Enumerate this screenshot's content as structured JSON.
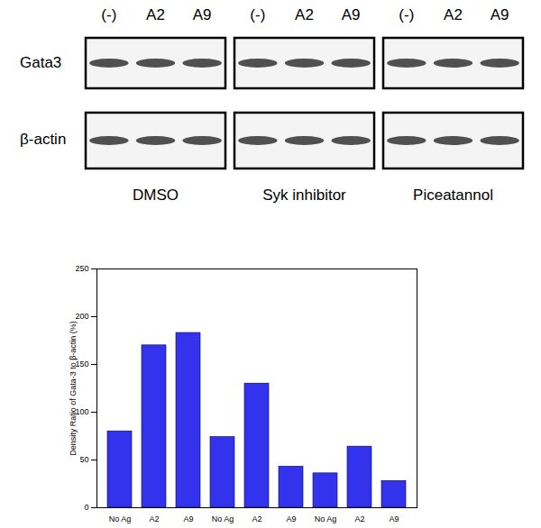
{
  "blot": {
    "lane_labels": [
      "(-)",
      "A2",
      "A9"
    ],
    "row_labels": [
      "Gata3",
      "β-actin"
    ],
    "panel_labels": [
      "DMSO",
      "Syk inhibitor",
      "Piceatannol"
    ]
  },
  "chart_data": {
    "type": "bar",
    "ylabel": "Density Ratio of Gata-3 to β-actin (%)",
    "categories": [
      "No Ag",
      "A2",
      "A9",
      "No Ag",
      "A2",
      "A9",
      "No Ag",
      "A2",
      "A9"
    ],
    "values": [
      80,
      170,
      183,
      74,
      130,
      43,
      36,
      64,
      28
    ],
    "color": "#3333ee",
    "ylim": [
      0,
      250
    ],
    "yticks": [
      0,
      50,
      100,
      150,
      200,
      250
    ]
  }
}
